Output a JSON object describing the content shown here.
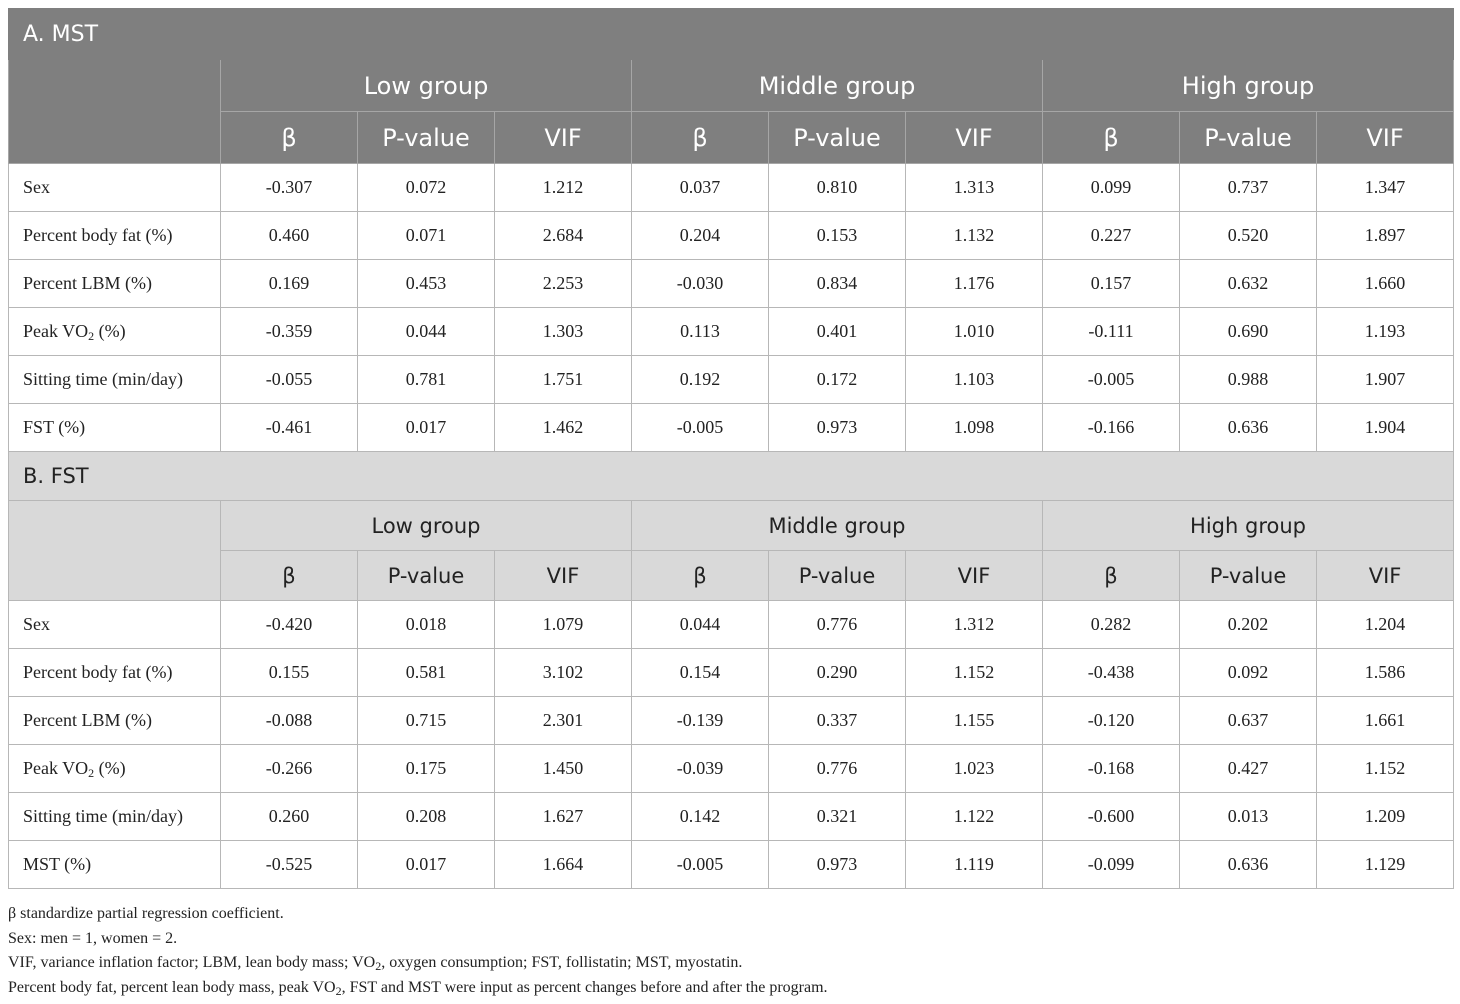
{
  "sections": [
    {
      "title": "A. MST",
      "groups": [
        "Low group",
        "Middle group",
        "High group"
      ],
      "subheaders": [
        "β",
        "P-value",
        "VIF",
        "β",
        "P-value",
        "VIF",
        "β",
        "P-value",
        "VIF"
      ],
      "rows": [
        {
          "label": "Sex",
          "values": [
            "-0.307",
            "0.072",
            "1.212",
            "0.037",
            "0.810",
            "1.313",
            "0.099",
            "0.737",
            "1.347"
          ]
        },
        {
          "label": "Percent body fat (%)",
          "values": [
            "0.460",
            "0.071",
            "2.684",
            "0.204",
            "0.153",
            "1.132",
            "0.227",
            "0.520",
            "1.897"
          ]
        },
        {
          "label": "Percent LBM (%)",
          "values": [
            "0.169",
            "0.453",
            "2.253",
            "-0.030",
            "0.834",
            "1.176",
            "0.157",
            "0.632",
            "1.660"
          ]
        },
        {
          "label": "Peak VO₂ (%)",
          "values": [
            "-0.359",
            "0.044",
            "1.303",
            "0.113",
            "0.401",
            "1.010",
            "-0.111",
            "0.690",
            "1.193"
          ]
        },
        {
          "label": "Sitting time (min/day)",
          "values": [
            "-0.055",
            "0.781",
            "1.751",
            "0.192",
            "0.172",
            "1.103",
            "-0.005",
            "0.988",
            "1.907"
          ]
        },
        {
          "label": "FST (%)",
          "values": [
            "-0.461",
            "0.017",
            "1.462",
            "-0.005",
            "0.973",
            "1.098",
            "-0.166",
            "0.636",
            "1.904"
          ]
        }
      ]
    },
    {
      "title": "B. FST",
      "groups": [
        "Low group",
        "Middle group",
        "High group"
      ],
      "subheaders": [
        "β",
        "P-value",
        "VIF",
        "β",
        "P-value",
        "VIF",
        "β",
        "P-value",
        "VIF"
      ],
      "rows": [
        {
          "label": "Sex",
          "values": [
            "-0.420",
            "0.018",
            "1.079",
            "0.044",
            "0.776",
            "1.312",
            "0.282",
            "0.202",
            "1.204"
          ]
        },
        {
          "label": "Percent body fat (%)",
          "values": [
            "0.155",
            "0.581",
            "3.102",
            "0.154",
            "0.290",
            "1.152",
            "-0.438",
            "0.092",
            "1.586"
          ]
        },
        {
          "label": "Percent LBM (%)",
          "values": [
            "-0.088",
            "0.715",
            "2.301",
            "-0.139",
            "0.337",
            "1.155",
            "-0.120",
            "0.637",
            "1.661"
          ]
        },
        {
          "label": "Peak VO₂ (%)",
          "values": [
            "-0.266",
            "0.175",
            "1.450",
            "-0.039",
            "0.776",
            "1.023",
            "-0.168",
            "0.427",
            "1.152"
          ]
        },
        {
          "label": "Sitting time (min/day)",
          "values": [
            "0.260",
            "0.208",
            "1.627",
            "0.142",
            "0.321",
            "1.122",
            "-0.600",
            "0.013",
            "1.209"
          ]
        },
        {
          "label": "MST (%)",
          "values": [
            "-0.525",
            "0.017",
            "1.664",
            "-0.005",
            "0.973",
            "1.119",
            "-0.099",
            "0.636",
            "1.129"
          ]
        }
      ]
    }
  ],
  "notes": [
    "β standardize partial regression coefficient.",
    "Sex: men = 1, women = 2.",
    "VIF, variance inflation factor; LBM, lean body mass; VO₂, oxygen consumption; FST, follistatin; MST, myostatin.",
    "Percent body fat, percent lean body mass, peak VO₂, FST and MST were input as percent changes before and after the program."
  ]
}
